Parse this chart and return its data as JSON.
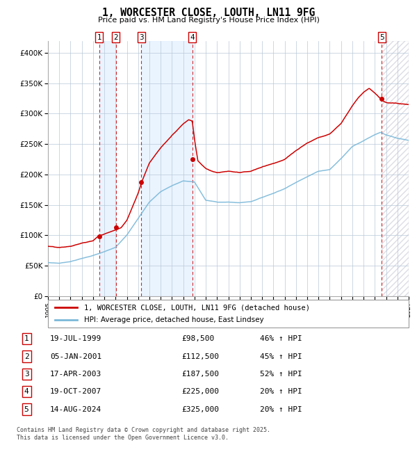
{
  "title": "1, WORCESTER CLOSE, LOUTH, LN11 9FG",
  "subtitle": "Price paid vs. HM Land Registry's House Price Index (HPI)",
  "footer": "Contains HM Land Registry data © Crown copyright and database right 2025.\nThis data is licensed under the Open Government Licence v3.0.",
  "legend_line1": "1, WORCESTER CLOSE, LOUTH, LN11 9FG (detached house)",
  "legend_line2": "HPI: Average price, detached house, East Lindsey",
  "transactions": [
    {
      "num": 1,
      "date": "19-JUL-1999",
      "price": "£98,500",
      "hpi": "46% ↑ HPI",
      "x_year": 1999.54
    },
    {
      "num": 2,
      "date": "05-JAN-2001",
      "price": "£112,500",
      "hpi": "45% ↑ HPI",
      "x_year": 2001.02
    },
    {
      "num": 3,
      "date": "17-APR-2003",
      "price": "£187,500",
      "hpi": "52% ↑ HPI",
      "x_year": 2003.29
    },
    {
      "num": 4,
      "date": "19-OCT-2007",
      "price": "£225,000",
      "hpi": "20% ↑ HPI",
      "x_year": 2007.8
    },
    {
      "num": 5,
      "date": "14-AUG-2024",
      "price": "£325,000",
      "hpi": "20% ↑ HPI",
      "x_year": 2024.62
    }
  ],
  "transaction_values": [
    98500,
    112500,
    187500,
    225000,
    325000
  ],
  "hpi_color": "#7ab8d9",
  "price_color": "#cc0000",
  "vline_color": "#cc0000",
  "shade_color": "#ddeeff",
  "ylim": [
    0,
    420000
  ],
  "xlim_start": 1995.0,
  "xlim_end": 2027.0,
  "ylabel_ticks": [
    0,
    50000,
    100000,
    150000,
    200000,
    250000,
    300000,
    350000,
    400000
  ],
  "ylabel_labels": [
    "£0",
    "£50K",
    "£100K",
    "£150K",
    "£200K",
    "£250K",
    "£300K",
    "£350K",
    "£400K"
  ]
}
